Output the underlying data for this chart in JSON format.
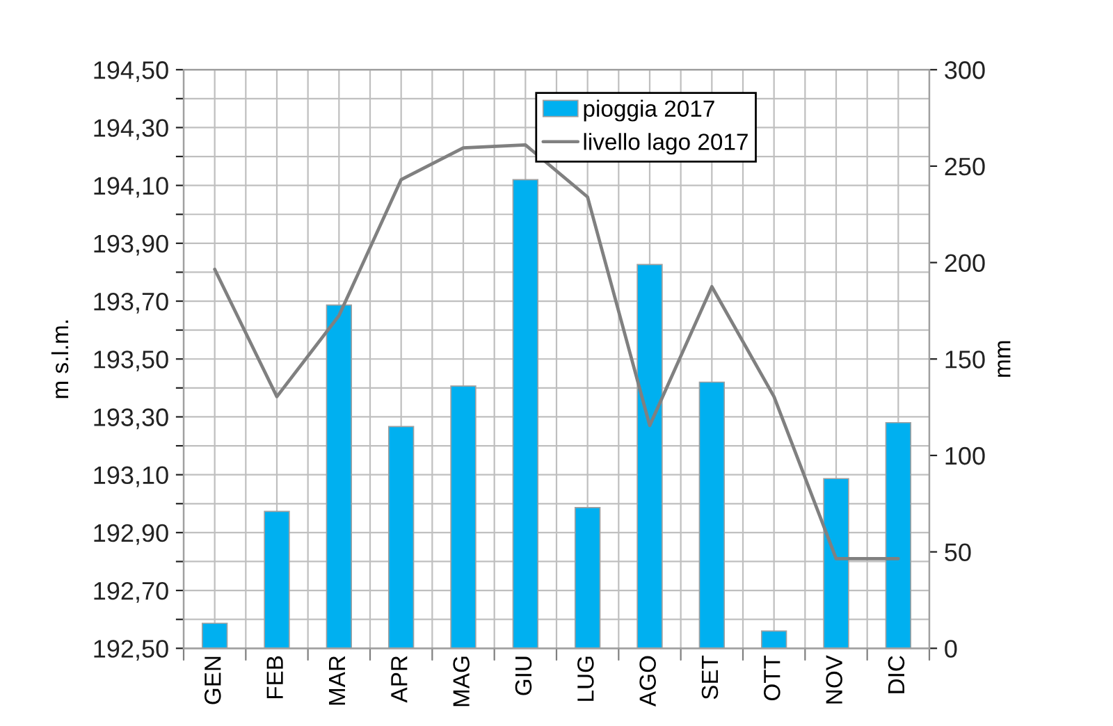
{
  "chart_data": {
    "type": "bar",
    "categories": [
      "GEN",
      "FEB",
      "MAR",
      "APR",
      "MAG",
      "GIU",
      "LUG",
      "AGO",
      "SET",
      "OTT",
      "NOV",
      "DIC"
    ],
    "series": [
      {
        "name": "pioggia 2017",
        "axis": "y2",
        "color": "#00b0f0",
        "values": [
          13,
          71,
          178,
          115,
          136,
          243,
          73,
          199,
          138,
          9,
          88,
          117
        ]
      },
      {
        "name": "livello lago 2017",
        "type": "line",
        "axis": "y",
        "color": "#808080",
        "values": [
          193.81,
          193.37,
          193.65,
          194.12,
          194.23,
          194.24,
          194.06,
          193.27,
          193.75,
          193.37,
          192.81,
          192.81
        ]
      }
    ],
    "ylabel": "m s.l.m.",
    "y2label": "mm",
    "ylim": [
      192.5,
      194.5
    ],
    "yticks": [
      {
        "value": 192.5,
        "label": "192,50"
      },
      {
        "value": 192.6,
        "label": null
      },
      {
        "value": 192.7,
        "label": "192,70"
      },
      {
        "value": 192.8,
        "label": null
      },
      {
        "value": 192.9,
        "label": "192,90"
      },
      {
        "value": 193.0,
        "label": null
      },
      {
        "value": 193.1,
        "label": "193,10"
      },
      {
        "value": 193.2,
        "label": null
      },
      {
        "value": 193.3,
        "label": "193,30"
      },
      {
        "value": 193.4,
        "label": null
      },
      {
        "value": 193.5,
        "label": "193,50"
      },
      {
        "value": 193.6,
        "label": null
      },
      {
        "value": 193.7,
        "label": "193,70"
      },
      {
        "value": 193.8,
        "label": null
      },
      {
        "value": 193.9,
        "label": "193,90"
      },
      {
        "value": 194.0,
        "label": null
      },
      {
        "value": 194.1,
        "label": "194,10"
      },
      {
        "value": 194.2,
        "label": null
      },
      {
        "value": 194.3,
        "label": "194,30"
      },
      {
        "value": 194.4,
        "label": null
      },
      {
        "value": 194.5,
        "label": "194,50"
      }
    ],
    "y2lim": [
      0,
      300
    ],
    "y2ticks": [
      0,
      50,
      100,
      150,
      200,
      250,
      300
    ],
    "grid": true,
    "legend": "top",
    "marker": "none",
    "line_style": "solid"
  }
}
